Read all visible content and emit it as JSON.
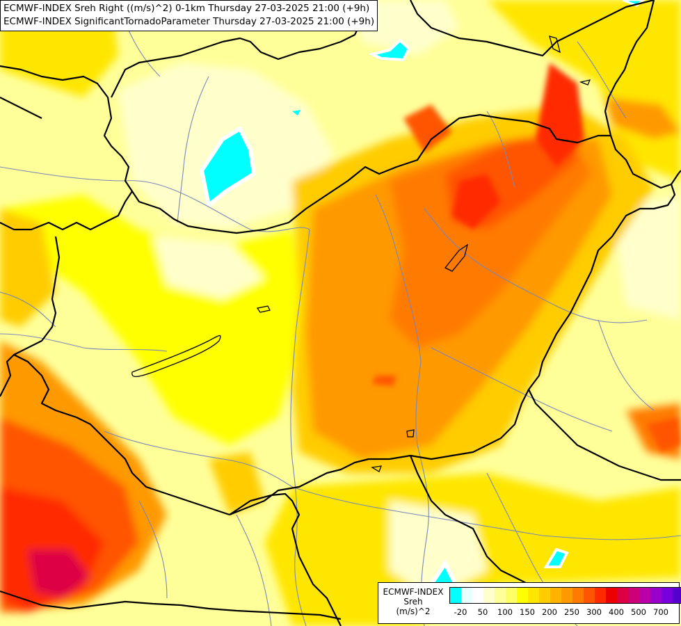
{
  "title": {
    "line1": "ECMWF-INDEX Sreh Right ((m/s)^2) 0-1km Thursday 27-03-2025 21:00 (+9h)",
    "line2": "ECMWF-INDEX SignificantTornadoParameter Thursday 27-03-2025 21:00 (+9h)"
  },
  "legend": {
    "model": "ECMWF-INDEX",
    "variable": "Sreh",
    "unit": "(m/s)^2",
    "colors": [
      "#00ffff",
      "#e8ffff",
      "#ffffff",
      "#ffffcc",
      "#ffff99",
      "#ffff66",
      "#ffff00",
      "#ffe600",
      "#ffcc00",
      "#ffb300",
      "#ff9900",
      "#ff7a00",
      "#ff5500",
      "#ff2a00",
      "#ee0000",
      "#dd0044",
      "#cc0077",
      "#bb00aa",
      "#9900cc",
      "#7700dd",
      "#5500cc",
      "#3300aa",
      "#110088"
    ],
    "ticks": [
      "-20",
      "50",
      "100",
      "150",
      "200",
      "250",
      "300",
      "400",
      "500",
      "700"
    ]
  },
  "colors": {
    "low_ffffcc": "#ffffcc",
    "yellow": "#ffff00",
    "gold": "#ffcc00",
    "orange": "#ff9900",
    "dark_orange": "#ff6a00",
    "red": "#ff2a00",
    "crimson": "#dd0044",
    "cyan": "#00ffff",
    "border": "#000000",
    "river": "#7a86b8"
  }
}
